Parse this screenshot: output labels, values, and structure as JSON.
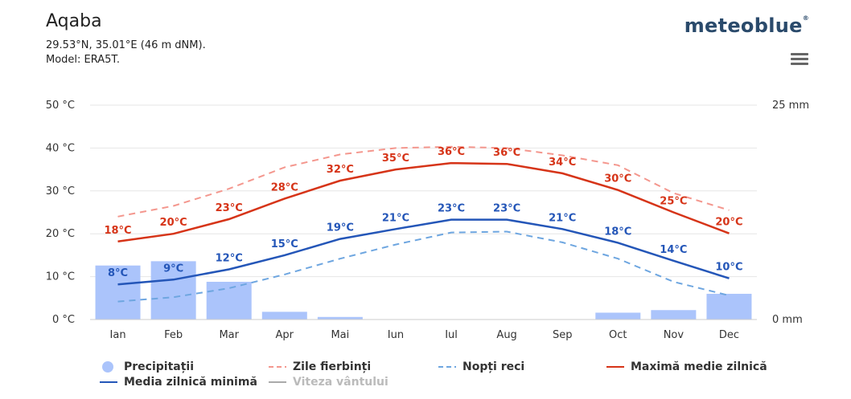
{
  "header": {
    "title": "Aqaba",
    "coords": "29.53°N, 35.01°E (46 m dNM).",
    "model": "Model: ERA5T.",
    "logo": "meteoblue",
    "logo_mark": "®"
  },
  "colors": {
    "hot_days": "#f4978e",
    "max": "#d63418",
    "min": "#2456b8",
    "cold_nights": "#6ea6e0",
    "precip": "#abc4fb",
    "wind": "#aaaaaa",
    "grid": "#e6e6e6"
  },
  "chart_data": {
    "type": "line",
    "categories": [
      "Ian",
      "Feb",
      "Mar",
      "Apr",
      "Mai",
      "Iun",
      "Iul",
      "Aug",
      "Sep",
      "Oct",
      "Nov",
      "Dec"
    ],
    "y_left": {
      "ticks": [
        "0 °C",
        "10 °C",
        "20 °C",
        "30 °C",
        "40 °C",
        "50 °C"
      ],
      "range": [
        0,
        50
      ]
    },
    "y_right": {
      "ticks": [
        "0 mm",
        "25 mm"
      ],
      "range": [
        0,
        25
      ]
    },
    "series": [
      {
        "name": "Zile fierbinți",
        "type": "line",
        "style": "dashed",
        "color": "#f4978e",
        "values": [
          24,
          26.5,
          30.5,
          35.5,
          38.5,
          40,
          40.3,
          40,
          38.3,
          36,
          29.5,
          25.5
        ]
      },
      {
        "name": "Maximă medie zilnică",
        "type": "line",
        "color": "#d63418",
        "values": [
          18.2,
          20,
          23.4,
          28.2,
          32.4,
          35,
          36.5,
          36.3,
          34.1,
          30.2,
          25,
          20.1
        ],
        "labels": [
          "18°C",
          "20°C",
          "23°C",
          "28°C",
          "32°C",
          "35°C",
          "36°C",
          "36°C",
          "34°C",
          "30°C",
          "25°C",
          "20°C"
        ]
      },
      {
        "name": "Media zilnică minimă",
        "type": "line",
        "color": "#2456b8",
        "values": [
          8.2,
          9.3,
          11.7,
          15,
          18.8,
          21.1,
          23.3,
          23.3,
          21.1,
          17.9,
          13.7,
          9.6
        ],
        "labels": [
          "8°C",
          "9°C",
          "12°C",
          "15°C",
          "19°C",
          "21°C",
          "23°C",
          "23°C",
          "21°C",
          "18°C",
          "14°C",
          "10°C"
        ]
      },
      {
        "name": "Nopți reci",
        "type": "line",
        "style": "dashed",
        "color": "#6ea6e0",
        "values": [
          4.2,
          5.2,
          7.3,
          10.5,
          14.2,
          17.5,
          20.3,
          20.5,
          18,
          14.2,
          8.8,
          5.6
        ]
      },
      {
        "name": "Precipitații",
        "type": "bar",
        "unit": "mm",
        "color": "#abc4fb",
        "values": [
          6.3,
          6.8,
          4.4,
          0.9,
          0.3,
          0,
          0,
          0,
          0,
          0.8,
          1.1,
          3
        ]
      }
    ],
    "legend": [
      "Precipitații",
      "Zile fierbinți",
      "Nopți reci",
      "Maximă medie zilnică",
      "Media zilnică minimă",
      "Viteza vântului"
    ]
  }
}
